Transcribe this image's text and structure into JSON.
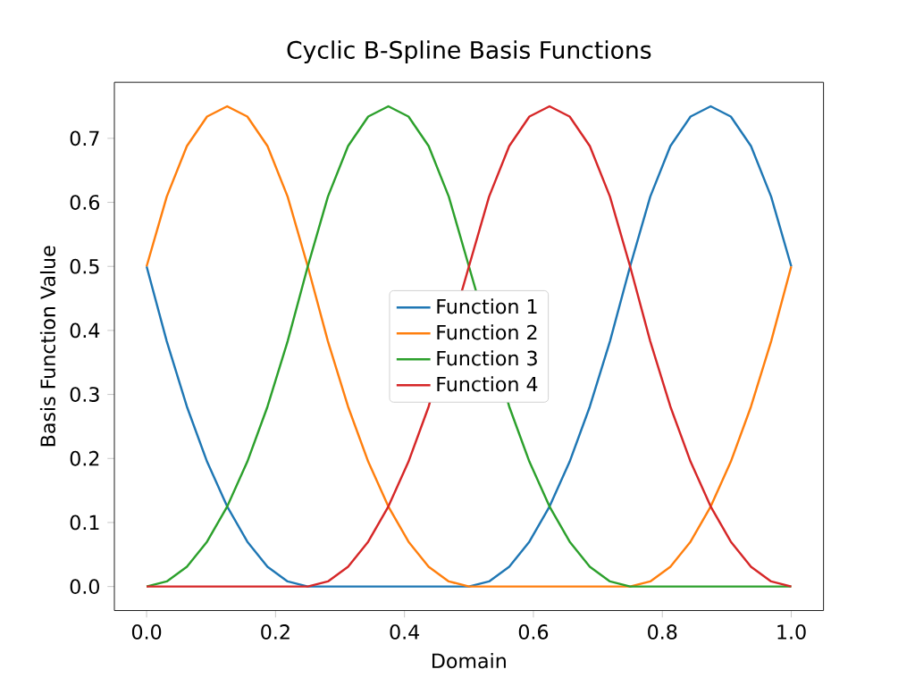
{
  "chart_data": {
    "type": "line",
    "title": "Cyclic B-Spline Basis Functions",
    "xlabel": "Domain",
    "ylabel": "Basis Function Value",
    "x": [
      0,
      0.03125,
      0.0625,
      0.09375,
      0.125,
      0.15625,
      0.1875,
      0.21875,
      0.25,
      0.28125,
      0.3125,
      0.34375,
      0.375,
      0.40625,
      0.4375,
      0.46875,
      0.5,
      0.53125,
      0.5625,
      0.59375,
      0.625,
      0.65625,
      0.6875,
      0.71875,
      0.75,
      0.78125,
      0.8125,
      0.84375,
      0.875,
      0.90625,
      0.9375,
      0.96875,
      1
    ],
    "series": [
      {
        "name": "Function 1",
        "color": "#1f77b4",
        "values": [
          0.5,
          0.383,
          0.281,
          0.195,
          0.125,
          0.07,
          0.031,
          0.008,
          0,
          0,
          0,
          0,
          0,
          0,
          0,
          0,
          0,
          0.008,
          0.031,
          0.07,
          0.125,
          0.195,
          0.281,
          0.383,
          0.5,
          0.609,
          0.688,
          0.734,
          0.75,
          0.734,
          0.688,
          0.609,
          0.5
        ]
      },
      {
        "name": "Function 2",
        "color": "#ff7f0e",
        "values": [
          0.5,
          0.609,
          0.688,
          0.734,
          0.75,
          0.734,
          0.688,
          0.609,
          0.5,
          0.383,
          0.281,
          0.195,
          0.125,
          0.07,
          0.031,
          0.008,
          0,
          0,
          0,
          0,
          0,
          0,
          0,
          0,
          0,
          0.008,
          0.031,
          0.07,
          0.125,
          0.195,
          0.281,
          0.383,
          0.5
        ]
      },
      {
        "name": "Function 3",
        "color": "#2ca02c",
        "values": [
          0,
          0.008,
          0.031,
          0.07,
          0.125,
          0.195,
          0.281,
          0.383,
          0.5,
          0.609,
          0.688,
          0.734,
          0.75,
          0.734,
          0.688,
          0.609,
          0.5,
          null,
          0.281,
          0.195,
          0.125,
          0.07,
          0.031,
          0.008,
          0,
          0,
          0,
          0,
          0,
          0,
          0,
          0,
          0
        ]
      },
      {
        "name": "Function 4",
        "color": "#d62728",
        "values": [
          0,
          0,
          0,
          0,
          0,
          0,
          0,
          0,
          0,
          0.008,
          0.031,
          0.07,
          0.125,
          0.195,
          0.281,
          null,
          0.5,
          0.609,
          0.688,
          0.734,
          0.75,
          0.734,
          0.688,
          0.609,
          0.5,
          0.383,
          0.281,
          0.195,
          0.125,
          0.07,
          0.031,
          0.008,
          0
        ]
      }
    ],
    "xlim": [
      -0.05,
      1.05
    ],
    "ylim": [
      -0.0375,
      0.7875
    ],
    "xticks": [
      {
        "value": 0,
        "label": "0.0"
      },
      {
        "value": 0.2,
        "label": "0.2"
      },
      {
        "value": 0.4,
        "label": "0.4"
      },
      {
        "value": 0.6,
        "label": "0.6"
      },
      {
        "value": 0.8,
        "label": "0.8"
      },
      {
        "value": 1.0,
        "label": "1.0"
      }
    ],
    "yticks": [
      {
        "value": 0,
        "label": "0.0"
      },
      {
        "value": 0.1,
        "label": "0.1"
      },
      {
        "value": 0.2,
        "label": "0.2"
      },
      {
        "value": 0.3,
        "label": "0.3"
      },
      {
        "value": 0.4,
        "label": "0.4"
      },
      {
        "value": 0.5,
        "label": "0.5"
      },
      {
        "value": 0.6,
        "label": "0.6"
      },
      {
        "value": 0.7,
        "label": "0.7"
      }
    ],
    "legend": "center",
    "marker": "none",
    "line_style": "solid"
  }
}
